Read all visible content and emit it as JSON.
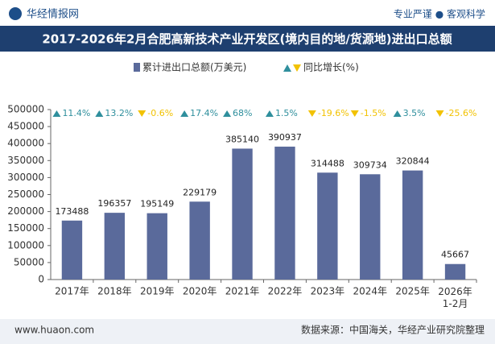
{
  "header": {
    "brand": "华经情报网",
    "slogan": "专业严谨 ● 客观科学"
  },
  "footer": {
    "site": "www.huaon.com",
    "source": "数据来源：中国海关，华经产业研究院整理"
  },
  "chart_data": {
    "type": "bar",
    "title": "2017-2026年2月合肥高新技术产业开发区(境内目的地/货源地)进出口总额",
    "categories": [
      "2017年",
      "2018年",
      "2019年",
      "2020年",
      "2021年",
      "2022年",
      "2023年",
      "2024年",
      "2025年",
      "2026年\n1-2月"
    ],
    "series": [
      {
        "name": "累计进出口总额(万美元)",
        "color": "#5a6a9b",
        "values": [
          173488,
          196357,
          195149,
          229179,
          385140,
          390937,
          314488,
          309734,
          320844,
          45667
        ]
      },
      {
        "name": "同比增长(%)",
        "color_up": "#2f8f9d",
        "color_down": "#f2c200",
        "values": [
          11.4,
          13.2,
          -0.6,
          17.4,
          68,
          1.5,
          -19.6,
          -1.5,
          3.5,
          -25.6
        ],
        "value_labels": [
          "11.4%",
          "13.2%",
          "-0.6%",
          "17.4%",
          "68%",
          "1.5%",
          "-19.6%",
          "-1.5%",
          "3.5%",
          "-25.6%"
        ]
      }
    ],
    "ylim": [
      0,
      500000
    ],
    "yticks": [
      0,
      50000,
      100000,
      150000,
      200000,
      250000,
      300000,
      350000,
      400000,
      450000,
      500000
    ],
    "legend": "top"
  }
}
